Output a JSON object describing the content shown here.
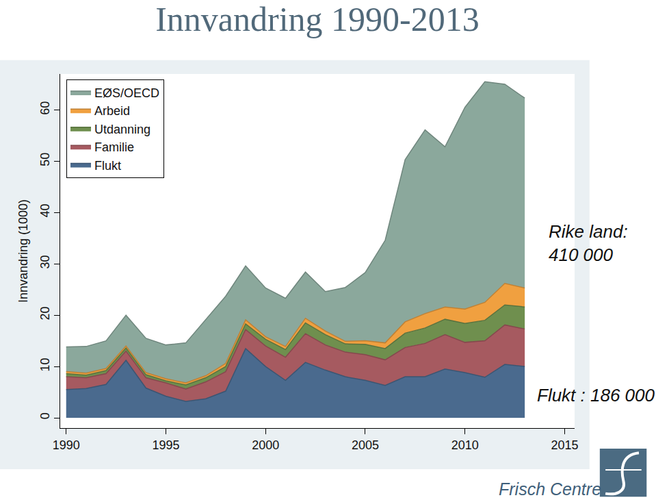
{
  "chart_data": {
    "type": "area",
    "title": "Innvandring 1990-2013",
    "y_label": "Innvandring (1000)",
    "stacked": true,
    "legend": "upper left",
    "grid": false,
    "x": [
      1990,
      1991,
      1992,
      1993,
      1994,
      1995,
      1996,
      1997,
      1998,
      1999,
      2000,
      2001,
      2002,
      2003,
      2004,
      2005,
      2006,
      2007,
      2008,
      2009,
      2010,
      2011,
      2012,
      2013
    ],
    "xlim": [
      1989.7,
      2015.5
    ],
    "xticks": [
      1990,
      1995,
      2000,
      2005,
      2010,
      2015
    ],
    "ylim": [
      -2,
      67
    ],
    "yticks": [
      0,
      10,
      20,
      30,
      40,
      50,
      60
    ],
    "series": [
      {
        "name": "Flukt",
        "color": "#4a6a8e",
        "values": [
          5.5,
          5.7,
          6.5,
          11.2,
          5.8,
          4.2,
          3.2,
          3.7,
          5.2,
          13.5,
          10.0,
          7.3,
          10.8,
          9.3,
          8.0,
          7.3,
          6.3,
          8.0,
          8.0,
          9.5,
          8.8,
          7.9,
          10.4,
          10.0
        ]
      },
      {
        "name": "Familie",
        "color": "#a65a60",
        "values": [
          2.5,
          2.1,
          2.1,
          1.8,
          2.0,
          2.6,
          2.4,
          3.3,
          3.8,
          3.7,
          4.0,
          4.5,
          5.6,
          4.9,
          4.8,
          5.0,
          5.0,
          5.7,
          6.5,
          6.7,
          5.9,
          7.1,
          7.7,
          7.3
        ]
      },
      {
        "name": "Utdanning",
        "color": "#6f8f4e",
        "values": [
          0.6,
          0.5,
          0.6,
          0.6,
          0.6,
          0.4,
          0.8,
          0.8,
          1.0,
          1.1,
          1.3,
          1.5,
          2.1,
          2.0,
          1.6,
          2.0,
          2.2,
          2.8,
          3.0,
          3.0,
          3.7,
          4.0,
          3.9,
          4.3
        ]
      },
      {
        "name": "Arbeid",
        "color": "#f0a040",
        "values": [
          0.4,
          0.4,
          0.4,
          0.4,
          0.4,
          0.4,
          0.4,
          0.4,
          0.6,
          0.8,
          0.5,
          0.6,
          0.9,
          0.7,
          0.5,
          0.7,
          1.1,
          2.2,
          2.8,
          2.4,
          2.8,
          3.5,
          4.2,
          3.7
        ]
      },
      {
        "name": "EØS/OECD",
        "color": "#8ba89c",
        "values": [
          4.8,
          5.2,
          5.4,
          6.0,
          6.7,
          6.6,
          7.8,
          10.9,
          13.1,
          10.5,
          9.5,
          9.4,
          9.0,
          7.7,
          10.5,
          13.3,
          20.0,
          31.6,
          35.8,
          31.2,
          39.3,
          43.0,
          38.8,
          37.0
        ]
      }
    ],
    "annotations": [
      "Rike land:\n410 000",
      "Flukt : 186 000"
    ],
    "source": "Frisch Centre"
  }
}
